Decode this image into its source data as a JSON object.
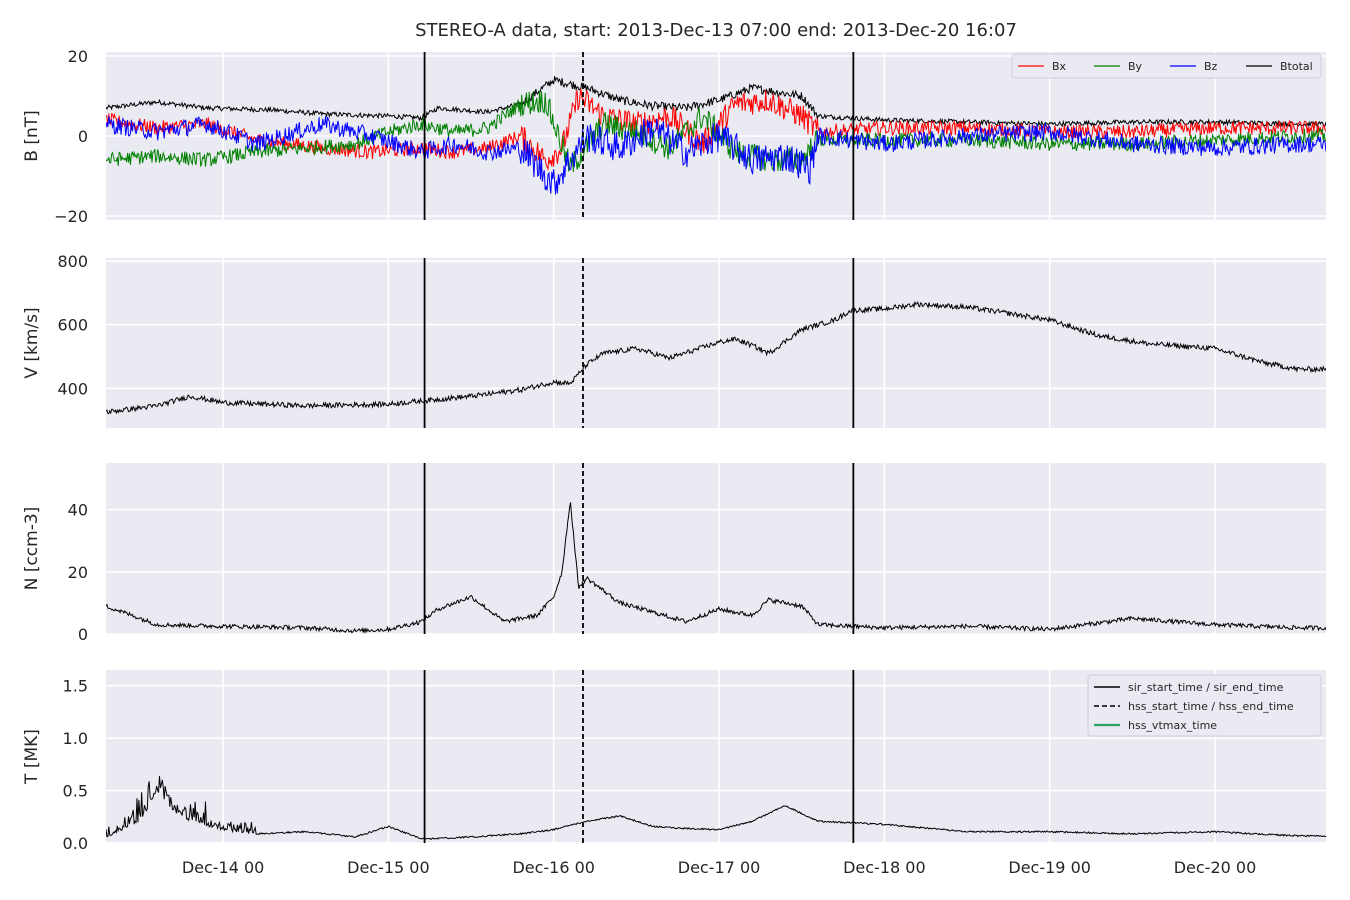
{
  "figure": {
    "title": "STEREO-A data, start: 2013-Dec-13 07:00  end: 2013-Dec-20 16:07"
  },
  "chart_data": {
    "type": "line",
    "time_range": {
      "start": "2013-Dec-13 07:00",
      "end": "2013-Dec-20 16:07"
    },
    "x_tick_labels": [
      "Dec-14 00",
      "Dec-15 00",
      "Dec-16 00",
      "Dec-17 00",
      "Dec-18 00",
      "Dec-19 00",
      "Dec-20 00"
    ],
    "x_ticks_days_since_dec13": [
      1,
      2,
      3,
      4,
      5,
      6,
      7
    ],
    "event_lines": {
      "sir": [
        "2013-Dec-15 05:15",
        "2013-Dec-17 19:30"
      ],
      "hss": [
        "2013-Dec-16 04:15"
      ]
    },
    "panels": [
      {
        "ylabel": "B [nT]",
        "ylim": [
          -21,
          21
        ],
        "yticks": [
          20,
          0,
          -20
        ],
        "ytick_labels": [
          "20",
          "0",
          "−20"
        ],
        "legend": {
          "position": "top-right",
          "entries": [
            {
              "label": "Bx",
              "color": "#ff0000"
            },
            {
              "label": "By",
              "color": "#008000"
            },
            {
              "label": "Bz",
              "color": "#0000ff"
            },
            {
              "label": "Btotal",
              "color": "#000000"
            }
          ]
        },
        "series": [
          {
            "name": "Btotal",
            "color": "#000000",
            "points": [
              [
                0.29,
                7
              ],
              [
                0.6,
                8.5
              ],
              [
                0.9,
                7
              ],
              [
                1.3,
                6.5
              ],
              [
                1.6,
                5.5
              ],
              [
                2.0,
                5
              ],
              [
                2.2,
                4.5
              ],
              [
                2.3,
                7
              ],
              [
                2.6,
                6
              ],
              [
                2.8,
                8
              ],
              [
                3.0,
                14
              ],
              [
                3.2,
                12
              ],
              [
                3.4,
                9
              ],
              [
                3.6,
                7.5
              ],
              [
                3.8,
                7
              ],
              [
                4.0,
                9
              ],
              [
                4.2,
                12
              ],
              [
                4.5,
                10
              ],
              [
                4.6,
                5
              ],
              [
                5.0,
                4
              ],
              [
                5.5,
                3.5
              ],
              [
                6.0,
                3
              ],
              [
                6.5,
                3.5
              ],
              [
                7.0,
                3.5
              ],
              [
                7.5,
                3
              ]
            ]
          },
          {
            "name": "Bx",
            "color": "#ff0000",
            "points": [
              [
                0.29,
                4
              ],
              [
                0.6,
                2
              ],
              [
                0.9,
                3
              ],
              [
                1.2,
                -1
              ],
              [
                1.6,
                -3
              ],
              [
                1.9,
                -4
              ],
              [
                2.2,
                -3
              ],
              [
                2.4,
                -4
              ],
              [
                2.6,
                -3
              ],
              [
                2.8,
                0
              ],
              [
                2.95,
                -6
              ],
              [
                3.05,
                -3
              ],
              [
                3.15,
                10
              ],
              [
                3.3,
                5
              ],
              [
                3.5,
                3
              ],
              [
                3.7,
                5
              ],
              [
                3.9,
                -2
              ],
              [
                4.1,
                8
              ],
              [
                4.3,
                9
              ],
              [
                4.5,
                5
              ],
              [
                4.6,
                1
              ],
              [
                5.0,
                2
              ],
              [
                5.5,
                2
              ],
              [
                6.0,
                1
              ],
              [
                6.5,
                1
              ],
              [
                7.0,
                2
              ],
              [
                7.5,
                2
              ]
            ]
          },
          {
            "name": "By",
            "color": "#008000",
            "points": [
              [
                0.29,
                -6
              ],
              [
                0.6,
                -5
              ],
              [
                0.9,
                -6
              ],
              [
                1.2,
                -4
              ],
              [
                1.5,
                -3
              ],
              [
                1.8,
                -2
              ],
              [
                2.0,
                1
              ],
              [
                2.2,
                3
              ],
              [
                2.4,
                1
              ],
              [
                2.6,
                2
              ],
              [
                2.8,
                8
              ],
              [
                2.95,
                9
              ],
              [
                3.1,
                -8
              ],
              [
                3.3,
                3
              ],
              [
                3.5,
                1
              ],
              [
                3.7,
                -3
              ],
              [
                3.9,
                5
              ],
              [
                4.1,
                -4
              ],
              [
                4.3,
                -6
              ],
              [
                4.5,
                -6
              ],
              [
                4.6,
                -1
              ],
              [
                5.0,
                -1
              ],
              [
                5.5,
                -1
              ],
              [
                6.0,
                -2
              ],
              [
                6.5,
                -2
              ],
              [
                7.0,
                -1
              ],
              [
                7.5,
                0
              ]
            ]
          },
          {
            "name": "Bz",
            "color": "#0000ff",
            "points": [
              [
                0.29,
                3
              ],
              [
                0.6,
                1
              ],
              [
                0.9,
                3
              ],
              [
                1.2,
                -2
              ],
              [
                1.6,
                3
              ],
              [
                1.9,
                0
              ],
              [
                2.2,
                -4
              ],
              [
                2.4,
                -2
              ],
              [
                2.6,
                -4
              ],
              [
                2.8,
                -3
              ],
              [
                3.0,
                -12
              ],
              [
                3.1,
                -6
              ],
              [
                3.2,
                0
              ],
              [
                3.4,
                -3
              ],
              [
                3.6,
                2
              ],
              [
                3.8,
                -4
              ],
              [
                4.0,
                0
              ],
              [
                4.2,
                -6
              ],
              [
                4.4,
                -5
              ],
              [
                4.55,
                -8
              ],
              [
                4.6,
                0
              ],
              [
                5.0,
                -2
              ],
              [
                5.5,
                0
              ],
              [
                6.0,
                1
              ],
              [
                6.5,
                -2
              ],
              [
                7.0,
                -3
              ],
              [
                7.5,
                -2
              ]
            ]
          }
        ]
      },
      {
        "ylabel": "V [km/s]",
        "ylim": [
          275,
          810
        ],
        "yticks": [
          800,
          600,
          400
        ],
        "ytick_labels": [
          "800",
          "600",
          "400"
        ],
        "series": [
          {
            "name": "V",
            "color": "#000000",
            "points": [
              [
                0.29,
                325
              ],
              [
                0.6,
                345
              ],
              [
                0.8,
                375
              ],
              [
                1.0,
                355
              ],
              [
                1.5,
                345
              ],
              [
                2.0,
                350
              ],
              [
                2.2,
                360
              ],
              [
                2.5,
                375
              ],
              [
                2.8,
                395
              ],
              [
                3.0,
                420
              ],
              [
                3.1,
                415
              ],
              [
                3.2,
                475
              ],
              [
                3.3,
                510
              ],
              [
                3.5,
                525
              ],
              [
                3.7,
                495
              ],
              [
                4.0,
                545
              ],
              [
                4.1,
                555
              ],
              [
                4.2,
                535
              ],
              [
                4.3,
                510
              ],
              [
                4.5,
                585
              ],
              [
                4.7,
                615
              ],
              [
                4.8,
                645
              ],
              [
                5.0,
                650
              ],
              [
                5.2,
                665
              ],
              [
                5.5,
                655
              ],
              [
                5.7,
                640
              ],
              [
                6.0,
                615
              ],
              [
                6.3,
                565
              ],
              [
                6.6,
                540
              ],
              [
                7.0,
                525
              ],
              [
                7.3,
                480
              ],
              [
                7.5,
                460
              ]
            ]
          }
        ]
      },
      {
        "ylabel": "N [ccm-3]",
        "ylim": [
          0,
          55
        ],
        "yticks": [
          40,
          20,
          0
        ],
        "ytick_labels": [
          "40",
          "20",
          "0"
        ],
        "series": [
          {
            "name": "N",
            "color": "#000000",
            "points": [
              [
                0.29,
                9
              ],
              [
                0.45,
                6
              ],
              [
                0.6,
                3
              ],
              [
                1.0,
                2.5
              ],
              [
                1.5,
                2
              ],
              [
                1.8,
                1
              ],
              [
                2.0,
                1.5
              ],
              [
                2.2,
                4
              ],
              [
                2.3,
                8
              ],
              [
                2.5,
                12
              ],
              [
                2.7,
                4
              ],
              [
                2.9,
                6
              ],
              [
                3.0,
                12
              ],
              [
                3.05,
                20
              ],
              [
                3.1,
                43
              ],
              [
                3.15,
                15
              ],
              [
                3.2,
                18
              ],
              [
                3.4,
                10
              ],
              [
                3.6,
                7
              ],
              [
                3.8,
                4
              ],
              [
                4.0,
                8
              ],
              [
                4.2,
                6
              ],
              [
                4.3,
                11
              ],
              [
                4.5,
                9
              ],
              [
                4.6,
                3
              ],
              [
                5.0,
                2
              ],
              [
                5.5,
                2.5
              ],
              [
                6.0,
                1.5
              ],
              [
                6.5,
                5
              ],
              [
                7.0,
                3
              ],
              [
                7.5,
                2
              ]
            ]
          }
        ]
      },
      {
        "ylabel": "T [MK]",
        "ylim": [
          0,
          1.65
        ],
        "yticks": [
          1.5,
          1.0,
          0.5,
          0.0
        ],
        "ytick_labels": [
          "1.5",
          "1.0",
          "0.5",
          "0.0"
        ],
        "legend": {
          "position": "top-right",
          "entries": [
            {
              "label": "sir_start_time / sir_end_time",
              "color": "#000000",
              "style": "solid"
            },
            {
              "label": "hss_start_time / hss_end_time",
              "color": "#000000",
              "style": "dashed"
            },
            {
              "label": "hss_vtmax_time",
              "color": "#2ca25f",
              "style": "solid"
            }
          ]
        },
        "series": [
          {
            "name": "T",
            "color": "#000000",
            "points": [
              [
                0.29,
                0.05
              ],
              [
                0.5,
                0.2
              ],
              [
                0.6,
                0.5
              ],
              [
                0.7,
                0.3
              ],
              [
                0.8,
                0.2
              ],
              [
                1.0,
                0.12
              ],
              [
                1.2,
                0.08
              ],
              [
                1.5,
                0.1
              ],
              [
                1.8,
                0.05
              ],
              [
                2.0,
                0.15
              ],
              [
                2.2,
                0.03
              ],
              [
                2.5,
                0.05
              ],
              [
                2.8,
                0.08
              ],
              [
                3.0,
                0.12
              ],
              [
                3.2,
                0.2
              ],
              [
                3.4,
                0.25
              ],
              [
                3.6,
                0.15
              ],
              [
                3.8,
                0.13
              ],
              [
                4.0,
                0.12
              ],
              [
                4.2,
                0.2
              ],
              [
                4.4,
                0.35
              ],
              [
                4.6,
                0.2
              ],
              [
                5.0,
                0.17
              ],
              [
                5.5,
                0.1
              ],
              [
                6.0,
                0.1
              ],
              [
                6.5,
                0.08
              ],
              [
                7.0,
                0.1
              ],
              [
                7.5,
                0.06
              ]
            ]
          }
        ]
      }
    ]
  }
}
